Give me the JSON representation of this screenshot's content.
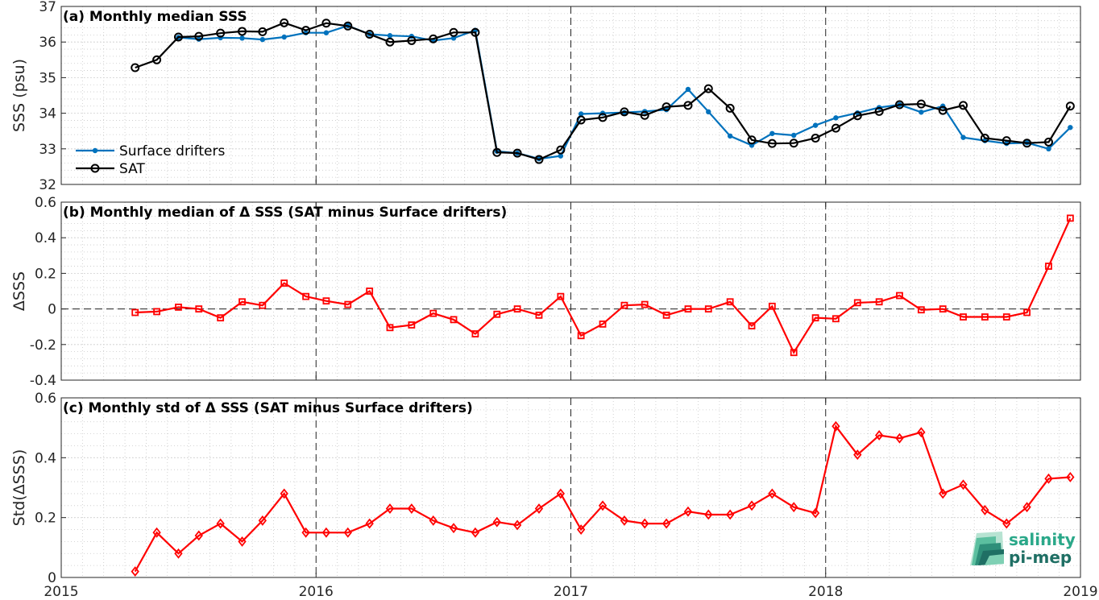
{
  "chart_data": [
    {
      "type": "line",
      "title": "(a) Monthly median SSS",
      "ylabel": "SSS (psu)",
      "xlim": [
        2015,
        2019
      ],
      "ylim": [
        32,
        37
      ],
      "xticks": [
        "2015",
        "2016",
        "2017",
        "2018",
        "2019"
      ],
      "yticks": [
        "32",
        "33",
        "34",
        "35",
        "36",
        "37"
      ],
      "legend_position": "bottom-left",
      "grid": true,
      "series": [
        {
          "name": "Surface drifters",
          "color": "#0072bd",
          "marker": "dot",
          "x": [
            2015.29,
            2015.375,
            2015.46,
            2015.54,
            2015.625,
            2015.71,
            2015.79,
            2015.875,
            2015.96,
            2016.04,
            2016.125,
            2016.21,
            2016.29,
            2016.375,
            2016.46,
            2016.54,
            2016.625,
            2016.71,
            2016.79,
            2016.875,
            2016.96,
            2017.04,
            2017.125,
            2017.21,
            2017.29,
            2017.375,
            2017.46,
            2017.54,
            2017.625,
            2017.71,
            2017.79,
            2017.875,
            2017.96,
            2018.04,
            2018.125,
            2018.21,
            2018.29,
            2018.375,
            2018.46,
            2018.54,
            2018.625,
            2018.71,
            2018.79,
            2018.875,
            2018.96
          ],
          "y": [
            null,
            null,
            36.13,
            36.08,
            36.12,
            36.11,
            36.07,
            36.14,
            36.26,
            36.26,
            36.46,
            36.22,
            36.18,
            36.16,
            36.04,
            36.11,
            36.33,
            32.93,
            32.88,
            32.72,
            32.8,
            33.98,
            34.0,
            34.02,
            34.05,
            34.1,
            34.67,
            34.04,
            33.36,
            33.1,
            33.43,
            33.38,
            33.66,
            33.87,
            34.01,
            34.16,
            34.24,
            34.03,
            34.2,
            33.32,
            33.23,
            33.15,
            33.17,
            33.0,
            33.6
          ]
        },
        {
          "name": "SAT",
          "color": "#000000",
          "marker": "circle",
          "x": [
            2015.29,
            2015.375,
            2015.46,
            2015.54,
            2015.625,
            2015.71,
            2015.79,
            2015.875,
            2015.96,
            2016.04,
            2016.125,
            2016.21,
            2016.29,
            2016.375,
            2016.46,
            2016.54,
            2016.625,
            2016.71,
            2016.79,
            2016.875,
            2016.96,
            2017.04,
            2017.125,
            2017.21,
            2017.29,
            2017.375,
            2017.46,
            2017.54,
            2017.625,
            2017.71,
            2017.79,
            2017.875,
            2017.96,
            2018.04,
            2018.125,
            2018.21,
            2018.29,
            2018.375,
            2018.46,
            2018.54,
            2018.625,
            2018.71,
            2018.79,
            2018.875,
            2018.96
          ],
          "y": [
            35.28,
            35.5,
            36.14,
            36.16,
            36.25,
            36.3,
            36.29,
            36.54,
            36.33,
            36.53,
            36.45,
            36.22,
            36.0,
            36.04,
            36.09,
            36.27,
            36.27,
            32.9,
            32.88,
            32.7,
            32.97,
            33.81,
            33.88,
            34.04,
            33.94,
            34.18,
            34.22,
            34.69,
            34.14,
            33.25,
            33.15,
            33.16,
            33.3,
            33.58,
            33.93,
            34.05,
            34.24,
            34.26,
            34.08,
            34.22,
            33.3,
            33.23,
            33.16,
            33.19,
            34.2
          ]
        }
      ]
    },
    {
      "type": "line",
      "title": "(b) Monthly median of Δ SSS (SAT minus Surface drifters)",
      "ylabel": "ΔSSS",
      "xlim": [
        2015,
        2019
      ],
      "ylim": [
        -0.4,
        0.6
      ],
      "xticks": [
        "2015",
        "2016",
        "2017",
        "2018",
        "2019"
      ],
      "yticks": [
        "-0.4",
        "-0.2",
        "0",
        "0.2",
        "0.4",
        "0.6"
      ],
      "grid": true,
      "zero_line": true,
      "series": [
        {
          "name": "",
          "color": "#ff0000",
          "marker": "square",
          "x": [
            2015.29,
            2015.375,
            2015.46,
            2015.54,
            2015.625,
            2015.71,
            2015.79,
            2015.875,
            2015.96,
            2016.04,
            2016.125,
            2016.21,
            2016.29,
            2016.375,
            2016.46,
            2016.54,
            2016.625,
            2016.71,
            2016.79,
            2016.875,
            2016.96,
            2017.04,
            2017.125,
            2017.21,
            2017.29,
            2017.375,
            2017.46,
            2017.54,
            2017.625,
            2017.71,
            2017.79,
            2017.875,
            2017.96,
            2018.04,
            2018.125,
            2018.21,
            2018.29,
            2018.375,
            2018.46,
            2018.54,
            2018.625,
            2018.71,
            2018.79,
            2018.875,
            2018.96
          ],
          "y": [
            -0.02,
            -0.015,
            0.01,
            0.0,
            -0.05,
            0.04,
            0.02,
            0.145,
            0.07,
            0.045,
            0.025,
            0.1,
            -0.105,
            -0.09,
            -0.025,
            -0.06,
            -0.14,
            -0.03,
            0.0,
            -0.035,
            0.07,
            -0.15,
            -0.085,
            0.02,
            0.025,
            -0.035,
            0.0,
            0.0,
            0.04,
            -0.095,
            0.015,
            -0.245,
            -0.05,
            -0.055,
            0.035,
            0.04,
            0.075,
            -0.005,
            0.0,
            -0.045,
            -0.045,
            -0.045,
            -0.02,
            0.24,
            0.51
          ]
        }
      ]
    },
    {
      "type": "line",
      "title": "(c) Monthly std of Δ SSS (SAT minus Surface drifters)",
      "ylabel": "Std(ΔSSS)",
      "xlim": [
        2015,
        2019
      ],
      "ylim": [
        0,
        0.6
      ],
      "xticks": [
        "2015",
        "2016",
        "2017",
        "2018",
        "2019"
      ],
      "yticks": [
        "0",
        "0.2",
        "0.4",
        "0.6"
      ],
      "grid": true,
      "series": [
        {
          "name": "",
          "color": "#ff0000",
          "marker": "diamond",
          "x": [
            2015.29,
            2015.375,
            2015.46,
            2015.54,
            2015.625,
            2015.71,
            2015.79,
            2015.875,
            2015.96,
            2016.04,
            2016.125,
            2016.21,
            2016.29,
            2016.375,
            2016.46,
            2016.54,
            2016.625,
            2016.71,
            2016.79,
            2016.875,
            2016.96,
            2017.04,
            2017.125,
            2017.21,
            2017.29,
            2017.375,
            2017.46,
            2017.54,
            2017.625,
            2017.71,
            2017.79,
            2017.875,
            2017.96,
            2018.04,
            2018.125,
            2018.21,
            2018.29,
            2018.375,
            2018.46,
            2018.54,
            2018.625,
            2018.71,
            2018.79,
            2018.875,
            2018.96
          ],
          "y": [
            0.02,
            0.15,
            0.08,
            0.14,
            0.18,
            0.12,
            0.19,
            0.28,
            0.15,
            0.15,
            0.15,
            0.18,
            0.23,
            0.23,
            0.19,
            0.165,
            0.15,
            0.185,
            0.175,
            0.23,
            0.28,
            0.16,
            0.24,
            0.19,
            0.18,
            0.18,
            0.22,
            0.21,
            0.21,
            0.24,
            0.28,
            0.235,
            0.215,
            0.505,
            0.41,
            0.475,
            0.465,
            0.485,
            0.28,
            0.31,
            0.225,
            0.18,
            0.235,
            0.33,
            0.335
          ]
        }
      ]
    }
  ],
  "logo": {
    "line1": "salinity",
    "line2": "pi-mep",
    "color_light": "#2aa889",
    "color_dark": "#1f6f64"
  }
}
